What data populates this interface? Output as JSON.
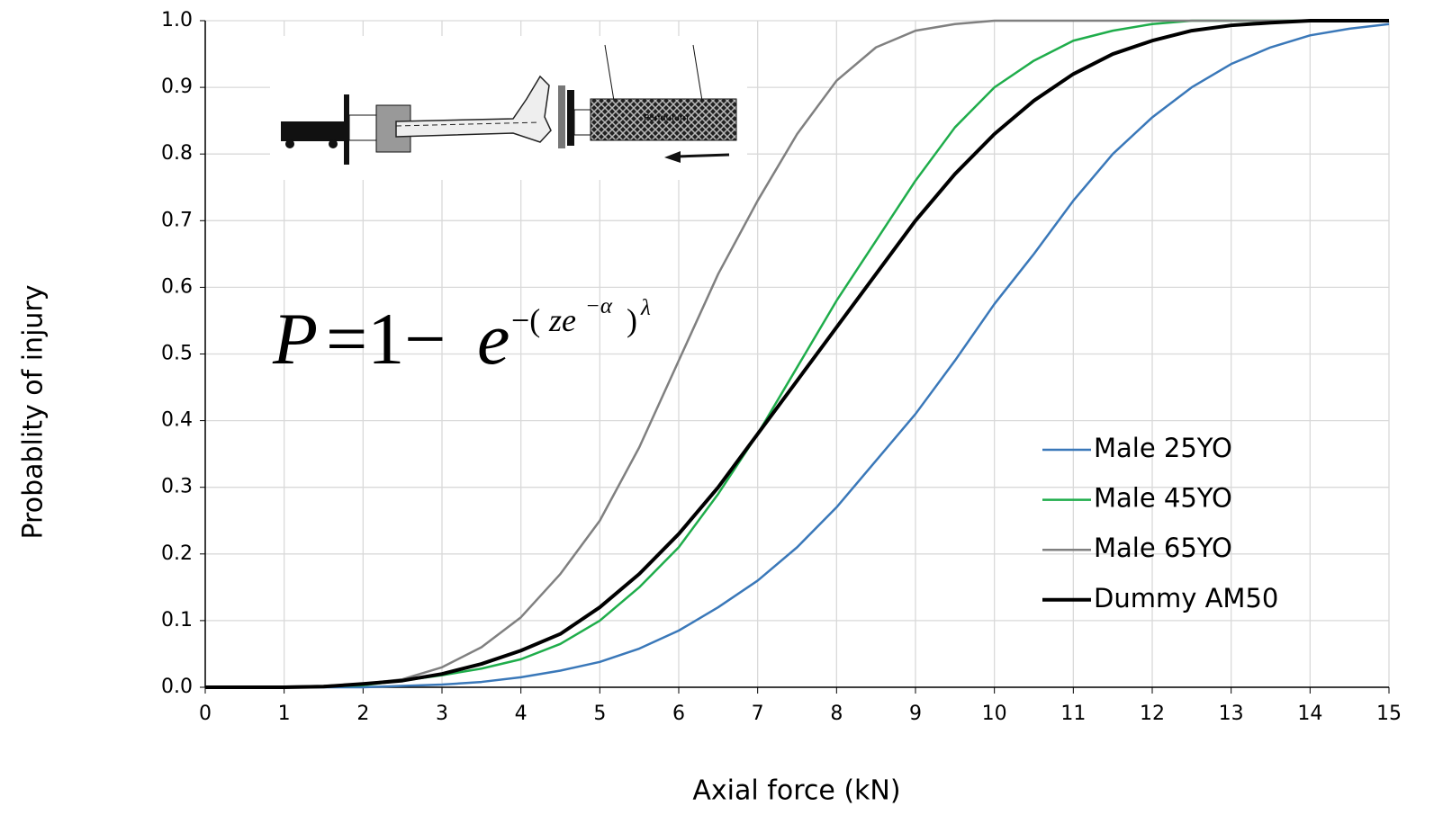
{
  "chart_data": {
    "type": "line",
    "x_label": "Axial force (kN)",
    "y_label": "Probablity of injury",
    "x": [
      0,
      0.5,
      1,
      1.5,
      2,
      2.5,
      3,
      3.5,
      4,
      4.5,
      5,
      5.5,
      6,
      6.5,
      7,
      7.5,
      8,
      8.5,
      9,
      9.5,
      10,
      10.5,
      11,
      11.5,
      12,
      12.5,
      13,
      13.5,
      14,
      14.5,
      15
    ],
    "series": [
      {
        "name": "Male 25YO",
        "color": "#3a78b9",
        "line_width": 2.5,
        "values": [
          0,
          0,
          0,
          0,
          0,
          0.002,
          0.004,
          0.008,
          0.015,
          0.025,
          0.038,
          0.058,
          0.085,
          0.12,
          0.16,
          0.21,
          0.27,
          0.34,
          0.41,
          0.49,
          0.575,
          0.65,
          0.73,
          0.8,
          0.855,
          0.9,
          0.935,
          0.96,
          0.978,
          0.988,
          0.995
        ]
      },
      {
        "name": "Male 45YO",
        "color": "#1fad4b",
        "line_width": 2.5,
        "values": [
          0,
          0,
          0,
          0.001,
          0.003,
          0.01,
          0.018,
          0.028,
          0.042,
          0.065,
          0.1,
          0.15,
          0.21,
          0.29,
          0.38,
          0.48,
          0.58,
          0.67,
          0.76,
          0.84,
          0.9,
          0.94,
          0.97,
          0.985,
          0.995,
          1,
          1,
          1,
          1,
          1,
          1
        ]
      },
      {
        "name": "Male 65YO",
        "color": "#808080",
        "line_width": 2.5,
        "values": [
          0,
          0,
          0.001,
          0.002,
          0.005,
          0.012,
          0.03,
          0.06,
          0.105,
          0.17,
          0.25,
          0.36,
          0.49,
          0.62,
          0.73,
          0.83,
          0.91,
          0.96,
          0.985,
          0.995,
          1,
          1,
          1,
          1,
          1,
          1,
          1,
          1,
          1,
          1,
          1
        ]
      },
      {
        "name": "Dummy AM50",
        "color": "#000000",
        "line_width": 4,
        "values": [
          0,
          0,
          0,
          0.001,
          0.005,
          0.01,
          0.02,
          0.035,
          0.055,
          0.08,
          0.12,
          0.17,
          0.23,
          0.3,
          0.38,
          0.46,
          0.54,
          0.62,
          0.7,
          0.77,
          0.83,
          0.88,
          0.92,
          0.95,
          0.97,
          0.985,
          0.993,
          0.997,
          1,
          1,
          1
        ]
      }
    ],
    "xlim": [
      0,
      15
    ],
    "xticks": [
      0,
      1,
      2,
      3,
      4,
      5,
      6,
      7,
      8,
      9,
      10,
      11,
      12,
      13,
      14,
      15
    ],
    "ylim": [
      0,
      1
    ],
    "yticks": [
      {
        "value": 0,
        "label": "0.0"
      },
      0.1,
      0.2,
      0.3,
      0.4,
      0.5,
      0.6,
      0.7,
      0.8,
      0.9,
      {
        "value": 1,
        "label": "1.0"
      }
    ],
    "grid": true,
    "legend": "lower right",
    "formula": {
      "p": "P",
      "eq": "=1−",
      "e": "e",
      "exp1": "−(",
      "exp2": "ze",
      "exp3": "−α",
      "exp4": ")",
      "exp5": "λ"
    },
    "inset_label": "Pendulum"
  }
}
